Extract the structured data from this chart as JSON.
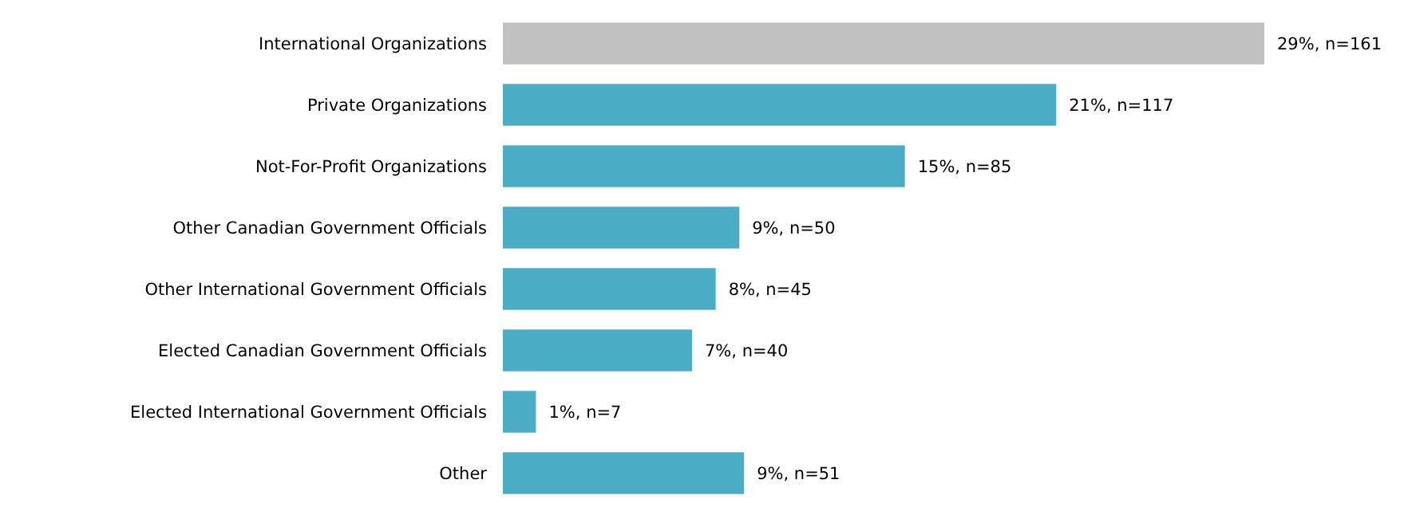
{
  "chart_data": {
    "type": "bar",
    "orientation": "horizontal",
    "categories": [
      "International Organizations",
      "Private Organizations",
      "Not-For-Profit Organizations",
      "Other Canadian Government Officials",
      "Other International Government Officials",
      "Elected Canadian Government Officials",
      "Elected International Government Officials",
      "Other"
    ],
    "values": [
      161,
      117,
      85,
      50,
      45,
      40,
      7,
      51
    ],
    "colors": [
      "#c0c0c0",
      "#4bacc6",
      "#4bacc6",
      "#4bacc6",
      "#4bacc6",
      "#4bacc6",
      "#4bacc6",
      "#4bacc6"
    ],
    "value_labels": [
      "29%, n=161",
      "21%, n=117",
      "15%, n=85",
      "9%, n=50",
      "8%, n=45",
      "7%, n=40",
      "1%, n=7",
      "9%, n=51"
    ]
  }
}
